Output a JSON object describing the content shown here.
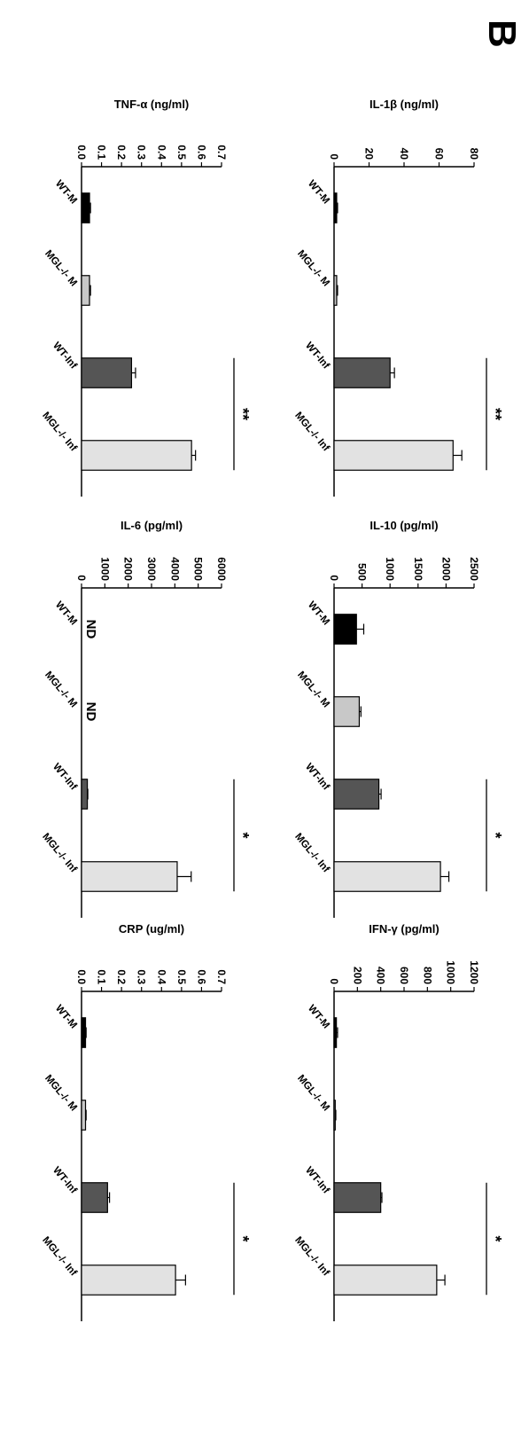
{
  "figure": {
    "panel_letter": "B"
  },
  "colors": {
    "WT-M": "#000000",
    "MGL-/- M": "#c8c8c8",
    "WT-Inf": "#555555",
    "MGL-/- Inf": "#e2e2e2"
  },
  "chart_data": [
    {
      "type": "bar",
      "ylabel": "IL-1β (ng/ml)",
      "categories": [
        "WT-M",
        "MGL-/- M",
        "WT-Inf",
        "MGL-/- Inf"
      ],
      "values": [
        1.5,
        1.5,
        32,
        68
      ],
      "errors": [
        0.5,
        0.5,
        2.5,
        5
      ],
      "ylim": [
        0,
        80
      ],
      "yticks": [
        "0",
        "20",
        "40",
        "60",
        "80"
      ],
      "significance": "**",
      "nd": []
    },
    {
      "type": "bar",
      "ylabel": "IL-10 (pg/ml)",
      "categories": [
        "WT-M",
        "MGL-/- M",
        "WT-Inf",
        "MGL-/- Inf"
      ],
      "values": [
        400,
        450,
        800,
        1900
      ],
      "errors": [
        130,
        30,
        40,
        150
      ],
      "ylim": [
        0,
        2500
      ],
      "yticks": [
        "0",
        "500",
        "1000",
        "1500",
        "2000",
        "2500"
      ],
      "significance": "*",
      "nd": []
    },
    {
      "type": "bar",
      "ylabel": "IFN-γ (pg/ml)",
      "categories": [
        "WT-M",
        "MGL-/- M",
        "WT-Inf",
        "MGL-/- Inf"
      ],
      "values": [
        20,
        10,
        400,
        880
      ],
      "errors": [
        10,
        5,
        10,
        70
      ],
      "ylim": [
        0,
        1200
      ],
      "yticks": [
        "0",
        "200",
        "400",
        "600",
        "800",
        "1000",
        "1200"
      ],
      "significance": "*",
      "nd": []
    },
    {
      "type": "bar",
      "ylabel": "TNF-α (ng/ml)",
      "categories": [
        "WT-M",
        "MGL-/- M",
        "WT-Inf",
        "MGL-/- Inf"
      ],
      "values": [
        0.04,
        0.04,
        0.25,
        0.55
      ],
      "errors": [
        0.005,
        0.005,
        0.02,
        0.02
      ],
      "ylim": [
        0,
        0.7
      ],
      "yticks": [
        "0.0",
        "0.1",
        "0.2",
        "0.3",
        "0.4",
        "0.5",
        "0.6",
        "0.7"
      ],
      "significance": "**",
      "nd": []
    },
    {
      "type": "bar",
      "ylabel": "IL-6 (pg/ml)",
      "categories": [
        "WT-M",
        "MGL-/- M",
        "WT-Inf",
        "MGL-/- Inf"
      ],
      "values": [
        0,
        0,
        250,
        4100
      ],
      "errors": [
        0,
        0,
        20,
        600
      ],
      "ylim": [
        0,
        6000
      ],
      "yticks": [
        "0",
        "1000",
        "2000",
        "3000",
        "4000",
        "5000",
        "6000"
      ],
      "significance": "*",
      "nd": [
        "ND",
        "ND",
        "",
        ""
      ]
    },
    {
      "type": "bar",
      "ylabel": "CRP (ug/ml)",
      "categories": [
        "WT-M",
        "MGL-/- M",
        "WT-Inf",
        "MGL-/- Inf"
      ],
      "values": [
        0.02,
        0.02,
        0.13,
        0.47
      ],
      "errors": [
        0.003,
        0.003,
        0.01,
        0.05
      ],
      "ylim": [
        0,
        0.7
      ],
      "yticks": [
        "0.0",
        "0.1",
        "0.2",
        "0.3",
        "0.4",
        "0.5",
        "0.6",
        "0.7"
      ],
      "significance": "*",
      "nd": []
    }
  ]
}
